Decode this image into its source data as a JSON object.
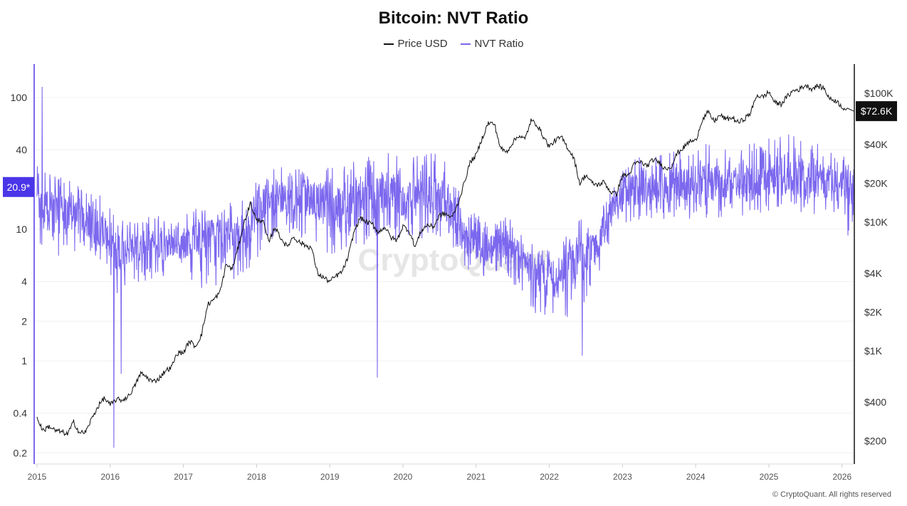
{
  "chart_data": {
    "type": "line",
    "title": "Bitcoin: NVT Ratio",
    "legend": [
      {
        "name": "Price USD",
        "color": "#111111"
      },
      {
        "name": "NVT Ratio",
        "color": "#7b68ee"
      }
    ],
    "legend_placement": "top-center",
    "left_axis": {
      "scale": "log",
      "ticks": [
        "0.2",
        "0.4",
        "1",
        "2",
        "4",
        "10",
        "40",
        "100"
      ],
      "tick_values": [
        0.2,
        0.4,
        1,
        2,
        4,
        10,
        40,
        100
      ]
    },
    "right_axis": {
      "scale": "log",
      "ticks": [
        "$200",
        "$400",
        "$1K",
        "$2K",
        "$4K",
        "$10K",
        "$20K",
        "$40K",
        "$100K"
      ],
      "tick_values": [
        200,
        400,
        1000,
        2000,
        4000,
        10000,
        20000,
        40000,
        100000
      ]
    },
    "x_ticks": [
      "2015",
      "2016",
      "2017",
      "2018",
      "2019",
      "2020",
      "2021",
      "2022",
      "2023",
      "2024",
      "2025",
      "2026"
    ],
    "x_range": [
      2015,
      2026.17
    ],
    "current_nvt_label": "20.9*",
    "current_nvt": 20.9,
    "current_price_label": "$72.6K",
    "current_price": 72600,
    "price_monthly_start": 2015.0,
    "price_monthly_usd": [
      300,
      240,
      260,
      240,
      235,
      225,
      280,
      230,
      235,
      300,
      370,
      430,
      380,
      420,
      415,
      445,
      530,
      670,
      625,
      575,
      610,
      700,
      740,
      960,
      970,
      1190,
      1080,
      1350,
      2300,
      2500,
      2850,
      4700,
      4300,
      6400,
      10000,
      14000,
      10200,
      10400,
      6900,
      9200,
      7500,
      6400,
      7700,
      7000,
      6600,
      6300,
      4000,
      3700,
      3450,
      3800,
      4100,
      5300,
      8500,
      10800,
      10000,
      9600,
      8300,
      9200,
      7600,
      7200,
      9300,
      8600,
      6400,
      8600,
      9500,
      9150,
      11300,
      11600,
      10800,
      13800,
      19700,
      29000,
      33000,
      45000,
      58800,
      57700,
      37300,
      35000,
      41500,
      47100,
      43800,
      61300,
      57000,
      46300,
      38500,
      43200,
      45500,
      37700,
      31800,
      19900,
      23300,
      20000,
      19400,
      20500,
      17200,
      16500,
      23100,
      23100,
      28500,
      29200,
      27200,
      30500,
      29200,
      25900,
      27000,
      34500,
      37700,
      42300,
      42600,
      61200,
      71300,
      60600,
      67500,
      62700,
      64600,
      59000,
      63300,
      70200,
      96400,
      93400,
      102400,
      84400,
      82500,
      94200,
      104600,
      107100,
      115700,
      108200,
      114000,
      109600,
      90400,
      87500,
      78600,
      72600
    ],
    "nvt_quarterly_start": 2015.0,
    "nvt_quarterly_mid_low_high": [
      [
        14,
        7,
        30
      ],
      [
        13,
        6,
        25
      ],
      [
        12,
        7,
        20
      ],
      [
        10,
        5,
        18
      ],
      [
        7,
        3,
        12
      ],
      [
        7,
        4,
        12
      ],
      [
        8,
        4,
        13
      ],
      [
        7,
        4,
        11
      ],
      [
        9,
        4,
        15
      ],
      [
        8,
        3,
        14
      ],
      [
        9,
        4,
        16
      ],
      [
        10,
        4,
        18
      ],
      [
        18,
        8,
        30
      ],
      [
        17,
        9,
        30
      ],
      [
        18,
        8,
        32
      ],
      [
        17,
        7,
        30
      ],
      [
        14,
        6,
        30
      ],
      [
        16,
        7,
        35
      ],
      [
        18,
        8,
        38
      ],
      [
        18,
        8,
        40
      ],
      [
        17,
        8,
        35
      ],
      [
        18,
        9,
        38
      ],
      [
        16,
        8,
        35
      ],
      [
        8,
        5,
        14
      ],
      [
        7,
        4,
        12
      ],
      [
        9,
        5,
        14
      ],
      [
        6,
        3,
        10
      ],
      [
        4,
        2,
        7
      ],
      [
        4,
        2,
        7
      ],
      [
        6,
        2,
        12
      ],
      [
        7,
        4,
        12
      ],
      [
        15,
        9,
        22
      ],
      [
        20,
        11,
        35
      ],
      [
        20,
        12,
        35
      ],
      [
        22,
        12,
        38
      ],
      [
        22,
        12,
        40
      ],
      [
        22,
        12,
        45
      ],
      [
        22,
        12,
        45
      ],
      [
        22,
        12,
        42
      ],
      [
        23,
        13,
        48
      ],
      [
        26,
        14,
        55
      ],
      [
        25,
        13,
        50
      ],
      [
        26,
        13,
        52
      ],
      [
        22,
        12,
        40
      ],
      [
        20,
        9,
        35
      ]
    ],
    "nvt_spikes": [
      {
        "date": 2015.07,
        "value": 120
      },
      {
        "date": 2016.05,
        "value": 0.22
      },
      {
        "date": 2016.15,
        "value": 0.8
      },
      {
        "date": 2019.65,
        "value": 0.75
      },
      {
        "date": 2022.45,
        "value": 1.1
      },
      {
        "date": 2026.08,
        "value": 9
      }
    ]
  },
  "watermark": "CryptoQuant",
  "footer": "© CryptoQuant. All rights reserved"
}
